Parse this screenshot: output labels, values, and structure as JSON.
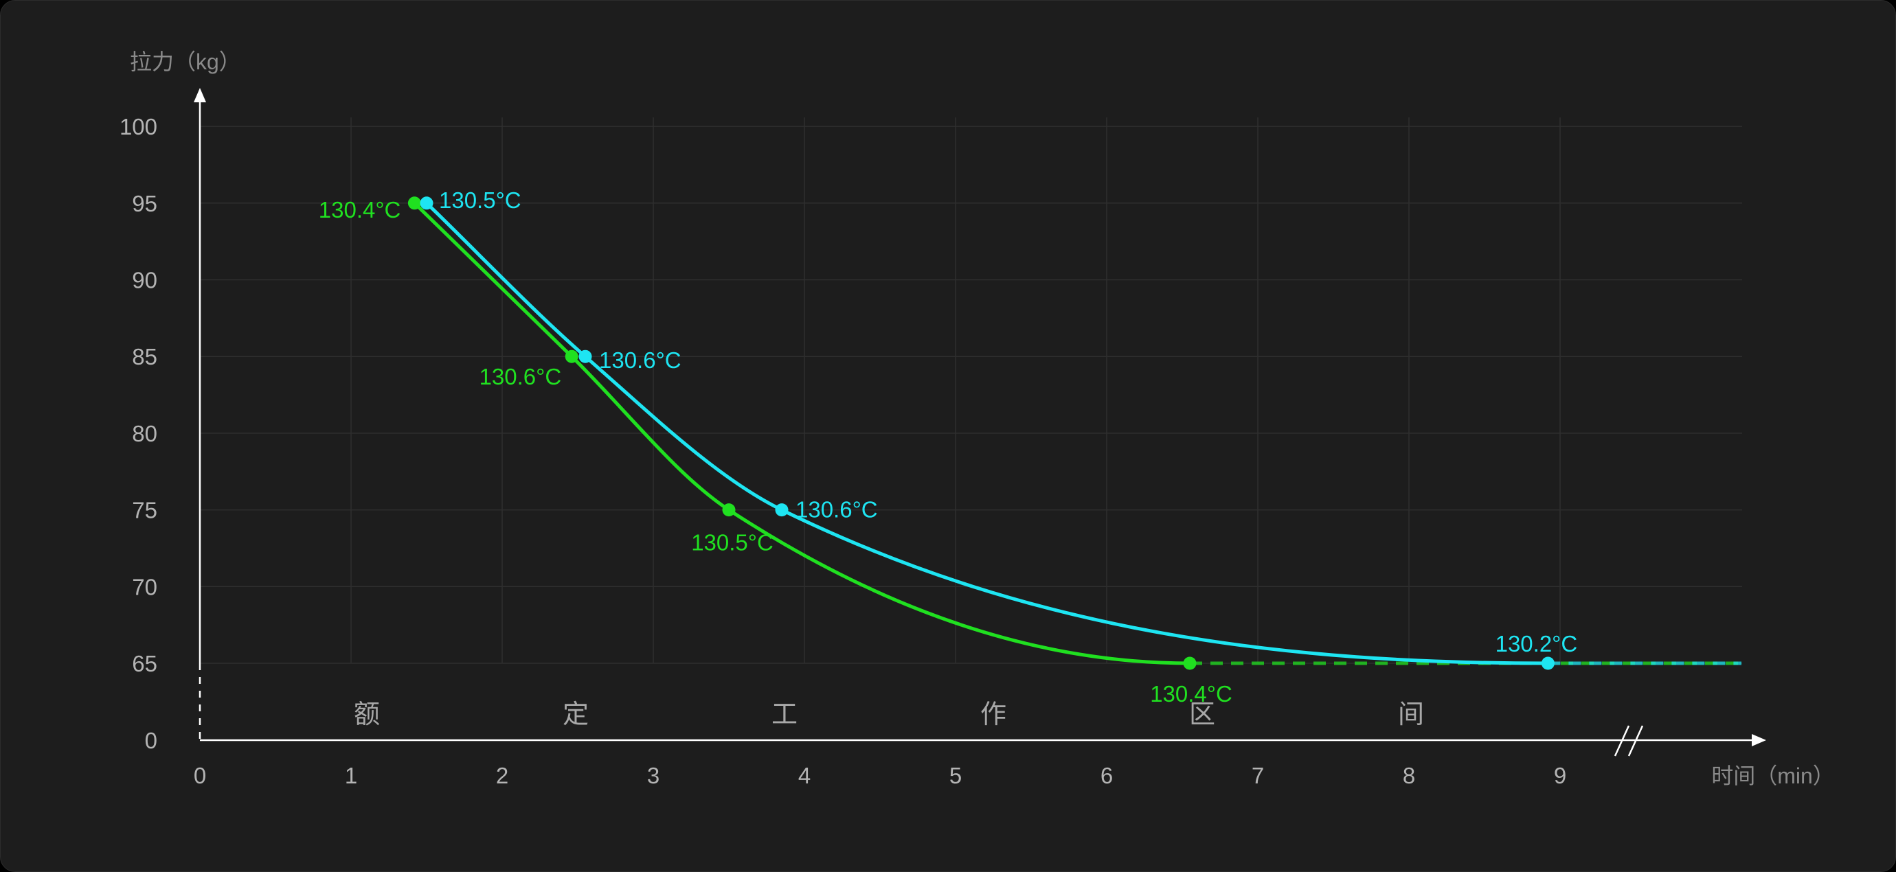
{
  "chart_data": {
    "type": "line",
    "ylabel": "拉力（kg）",
    "xlabel": "时间（min）",
    "x_ticks": [
      "0",
      "1",
      "2",
      "3",
      "4",
      "5",
      "6",
      "7",
      "8",
      "9"
    ],
    "y_ticks": [
      "0",
      "65",
      "70",
      "75",
      "80",
      "85",
      "90",
      "95",
      "100"
    ],
    "xlim": [
      0,
      10.2
    ],
    "ylim_display": [
      65,
      100
    ],
    "y_axis_break": true,
    "x_axis_break": true,
    "grid": true,
    "zone_text": [
      "额",
      "定",
      "工",
      "作",
      "区",
      "间"
    ],
    "series": [
      {
        "color": "#20e020",
        "points": [
          {
            "x": 1.42,
            "y": 95,
            "label": "130.4°C"
          },
          {
            "x": 2.46,
            "y": 85,
            "label": "130.6°C"
          },
          {
            "x": 3.5,
            "y": 75,
            "label": "130.5°C"
          },
          {
            "x": 6.55,
            "y": 65,
            "label": "130.4°C"
          }
        ],
        "dashed_extension_to_x": 10.2
      },
      {
        "color": "#1ee5f2",
        "points": [
          {
            "x": 1.5,
            "y": 95,
            "label": "130.5°C"
          },
          {
            "x": 2.55,
            "y": 85,
            "label": "130.6°C"
          },
          {
            "x": 3.85,
            "y": 75,
            "label": "130.6°C"
          },
          {
            "x": 8.92,
            "y": 65,
            "label": "130.2°C"
          }
        ],
        "dashed_extension_to_x": 10.2
      }
    ]
  }
}
